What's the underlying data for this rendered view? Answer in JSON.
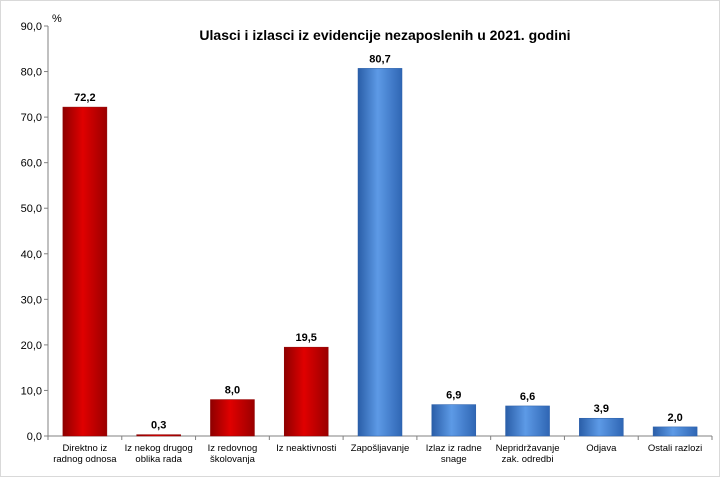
{
  "chart_data": {
    "type": "bar",
    "title": "Ulasci  i izlasci iz evidencije nezaposlenih u 2021. godini",
    "unit_label": "%",
    "ylim": [
      0,
      90
    ],
    "ytick_step": 10,
    "ytick_labels": [
      "0,0",
      "10,0",
      "20,0",
      "30,0",
      "40,0",
      "50,0",
      "60,0",
      "70,0",
      "80,0",
      "90,0"
    ],
    "grid": false,
    "categories": [
      [
        "Direktno iz",
        "radnog odnosa"
      ],
      [
        "Iz nekog drugog",
        "oblika rada"
      ],
      [
        "Iz redovnog",
        "školovanja"
      ],
      [
        "Iz neaktivnosti"
      ],
      [
        "Zapošljavanje"
      ],
      [
        "Izlaz iz radne",
        "snage"
      ],
      [
        "Nepridržavanje",
        "zak. odredbi"
      ],
      [
        "Odjava"
      ],
      [
        "Ostali razlozi"
      ]
    ],
    "values": [
      72.2,
      0.3,
      8.0,
      19.5,
      80.7,
      6.9,
      6.6,
      3.9,
      2.0
    ],
    "value_labels": [
      "72,2",
      "0,3",
      "8,0",
      "19,5",
      "80,7",
      "6,9",
      "6,6",
      "3,9",
      "2,0"
    ],
    "bar_groups": [
      "inflow",
      "inflow",
      "inflow",
      "inflow",
      "outflow",
      "outflow",
      "outflow",
      "outflow",
      "outflow"
    ],
    "colors": {
      "inflow": "#cc0000",
      "inflow_dark": "#8e0000",
      "outflow": "#4a86d4",
      "outflow_dark": "#2a5ea8"
    }
  }
}
